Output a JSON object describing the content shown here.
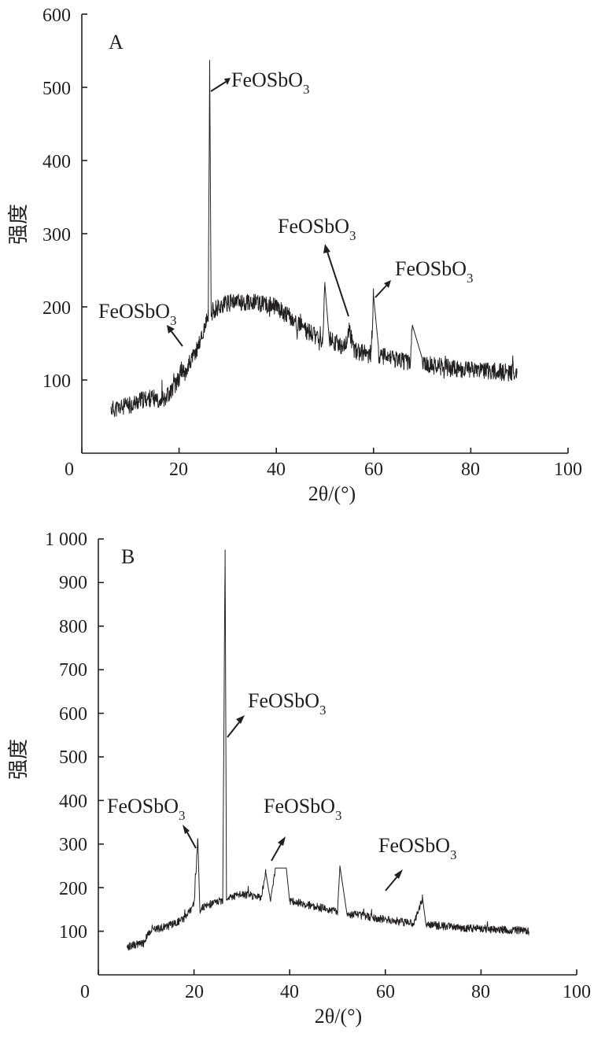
{
  "chart_data": [
    {
      "type": "line",
      "panel_label": "A",
      "xlabel": "2θ/(°)",
      "ylabel": "强度",
      "xlim": [
        0,
        100
      ],
      "ylim": [
        0,
        600
      ],
      "xticks": [
        "0",
        "20",
        "40",
        "60",
        "80",
        "100"
      ],
      "yticks": [
        "100",
        "200",
        "300",
        "400",
        "500",
        "600"
      ],
      "grid": false,
      "series": [
        {
          "x": [
            6,
            8,
            10,
            12,
            14,
            16,
            17,
            18,
            19,
            20,
            20.5,
            21,
            22,
            23,
            24,
            25,
            25.5,
            26,
            26.3,
            26.6,
            27,
            28,
            29,
            30,
            32,
            34,
            36,
            38,
            40,
            42,
            44,
            46,
            48,
            49.5,
            50,
            51,
            52,
            54,
            55,
            56,
            58,
            59.5,
            60,
            61,
            62,
            64,
            66,
            67.5,
            68,
            70,
            72,
            74,
            76,
            78,
            80,
            82,
            84,
            86,
            88,
            89.5
          ],
          "y": [
            60,
            62,
            66,
            72,
            75,
            74,
            76,
            82,
            92,
            100,
            118,
            108,
            122,
            132,
            148,
            165,
            178,
            185,
            537,
            190,
            195,
            200,
            202,
            205,
            207,
            206,
            205,
            203,
            200,
            190,
            178,
            168,
            160,
            155,
            230,
            157,
            152,
            145,
            170,
            140,
            137,
            134,
            215,
            134,
            132,
            128,
            126,
            124,
            175,
            122,
            120,
            118,
            116,
            115,
            114,
            113,
            112,
            111,
            110,
            109
          ]
        }
      ],
      "annotations": [
        {
          "text": "FeOSbO",
          "sub": "3",
          "x": 20.5
        },
        {
          "text": "FeOSbO",
          "sub": "3",
          "x": 26.3
        },
        {
          "text": "FeOSbO",
          "sub": "3",
          "x": 55
        },
        {
          "text": "FeOSbO",
          "sub": "3",
          "x": 60
        }
      ]
    },
    {
      "type": "line",
      "panel_label": "B",
      "xlabel": "2θ/(°)",
      "ylabel": "强度",
      "xlim": [
        0,
        100
      ],
      "ylim": [
        0,
        1000
      ],
      "xticks": [
        "0",
        "20",
        "40",
        "60",
        "80",
        "100"
      ],
      "yticks": [
        "100",
        "200",
        "300",
        "400",
        "500",
        "600",
        "700",
        "800",
        "900",
        "1 000"
      ],
      "grid": false,
      "series": [
        {
          "x": [
            6,
            8,
            9.5,
            10,
            11,
            12,
            14,
            16,
            18,
            19,
            20,
            20.8,
            21.2,
            22,
            24,
            25,
            26,
            26.5,
            26.8,
            27,
            28,
            30,
            32,
            34,
            35,
            36,
            37,
            39.3,
            40,
            42,
            44,
            46,
            48,
            50,
            50.5,
            52,
            54,
            56,
            58,
            60,
            62,
            64,
            66,
            67.8,
            68.5,
            70,
            72,
            74,
            76,
            78,
            80,
            82,
            84,
            86,
            88,
            90
          ],
          "y": [
            65,
            70,
            72,
            85,
            100,
            105,
            110,
            118,
            130,
            145,
            160,
            310,
            150,
            155,
            165,
            168,
            172,
            975,
            175,
            178,
            180,
            185,
            182,
            178,
            235,
            175,
            245,
            245,
            170,
            165,
            160,
            155,
            150,
            145,
            250,
            140,
            138,
            134,
            130,
            128,
            124,
            120,
            118,
            175,
            116,
            114,
            112,
            110,
            108,
            107,
            106,
            105,
            104,
            103,
            102,
            100
          ]
        }
      ],
      "annotations": [
        {
          "text": "FeOSbO",
          "sub": "3",
          "x": 21
        },
        {
          "text": "FeOSbO",
          "sub": "3",
          "x": 26.6
        },
        {
          "text": "FeOSbO",
          "sub": "3",
          "x": 36
        },
        {
          "text": "FeOSbO",
          "sub": "3",
          "x": 60
        }
      ]
    }
  ]
}
